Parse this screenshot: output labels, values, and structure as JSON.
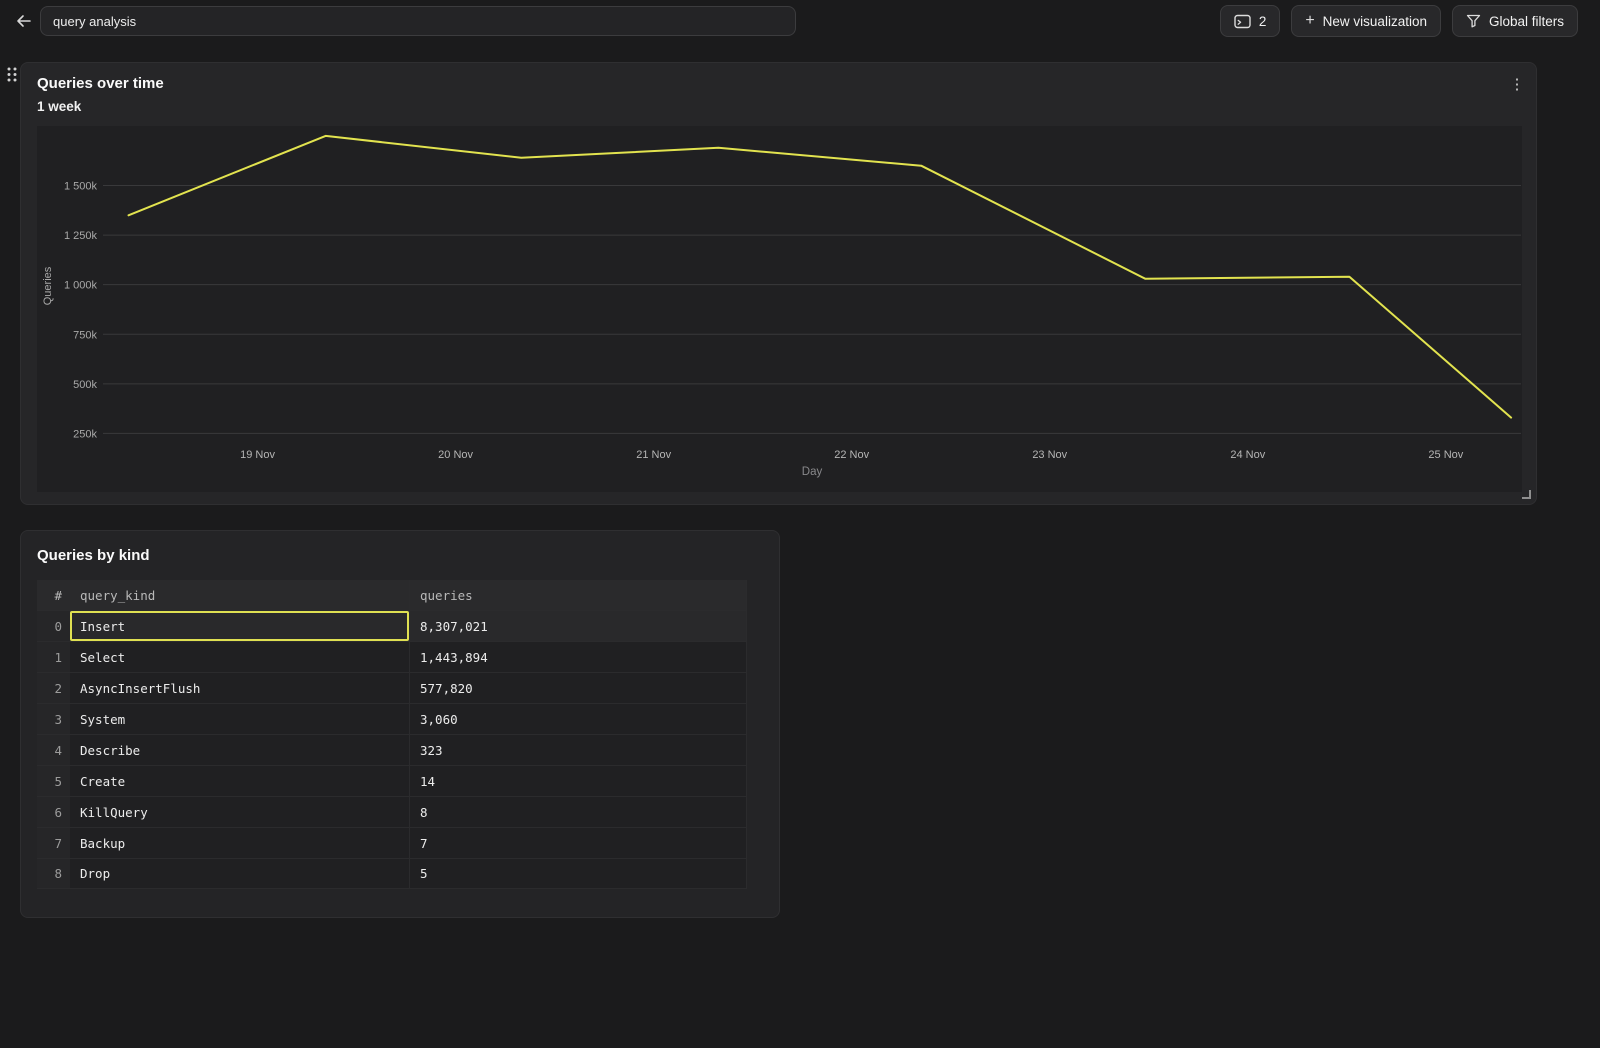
{
  "topbar": {
    "back_icon": "arrow-left",
    "title_input": {
      "value": "query analysis"
    },
    "console_button": {
      "count": "2",
      "icon": "sql-console"
    },
    "new_viz_button": {
      "plus": "+",
      "label": "New visualization"
    },
    "global_filters_button": {
      "label": "Global filters",
      "icon": "funnel"
    }
  },
  "chart_card": {
    "title": "Queries over time",
    "subtitle": "1 week",
    "kebab_icon": "⋮"
  },
  "chart_data": {
    "type": "line",
    "title": "Queries over time",
    "subtitle": "1 week",
    "xlabel": "Day",
    "ylabel": "Queries",
    "x_ticks": [
      "19 Nov",
      "20 Nov",
      "21 Nov",
      "22 Nov",
      "23 Nov",
      "24 Nov",
      "25 Nov"
    ],
    "y_ticks": [
      "1 500k",
      "1 250k",
      "1 000k",
      "750k",
      "500k",
      "250k"
    ],
    "y_tick_values": [
      1500000,
      1250000,
      1000000,
      750000,
      500000,
      250000
    ],
    "ylim": [
      0,
      1800000
    ],
    "grid": "horizontal-only",
    "legend": "none",
    "line_color": "#e2e34f",
    "series": [
      {
        "name": "Queries",
        "points": [
          [
            0.018,
            1350000
          ],
          [
            0.157,
            1750000
          ],
          [
            0.295,
            1640000
          ],
          [
            0.434,
            1690000
          ],
          [
            0.577,
            1600000
          ],
          [
            0.735,
            1030000
          ],
          [
            0.879,
            1040000
          ],
          [
            0.993,
            330000
          ]
        ]
      }
    ]
  },
  "table_card": {
    "title": "Queries by kind",
    "columns": [
      "#",
      "query_kind",
      "queries"
    ],
    "rows": [
      {
        "index": "0",
        "query_kind": "Insert",
        "queries": "8,307,021",
        "selected": true
      },
      {
        "index": "1",
        "query_kind": "Select",
        "queries": "1,443,894",
        "selected": false
      },
      {
        "index": "2",
        "query_kind": "AsyncInsertFlush",
        "queries": "577,820",
        "selected": false
      },
      {
        "index": "3",
        "query_kind": "System",
        "queries": "3,060",
        "selected": false
      },
      {
        "index": "4",
        "query_kind": "Describe",
        "queries": "323",
        "selected": false
      },
      {
        "index": "5",
        "query_kind": "Create",
        "queries": "14",
        "selected": false
      },
      {
        "index": "6",
        "query_kind": "KillQuery",
        "queries": "8",
        "selected": false
      },
      {
        "index": "7",
        "query_kind": "Backup",
        "queries": "7",
        "selected": false
      },
      {
        "index": "8",
        "query_kind": "Drop",
        "queries": "5",
        "selected": false
      }
    ]
  },
  "colors": {
    "page_bg": "#1b1b1c",
    "card_bg": "#262628",
    "plot_bg": "#202022",
    "accent_yellow": "#e2e34f",
    "selection_border": "#dfe052",
    "gridline": "#39393b"
  }
}
